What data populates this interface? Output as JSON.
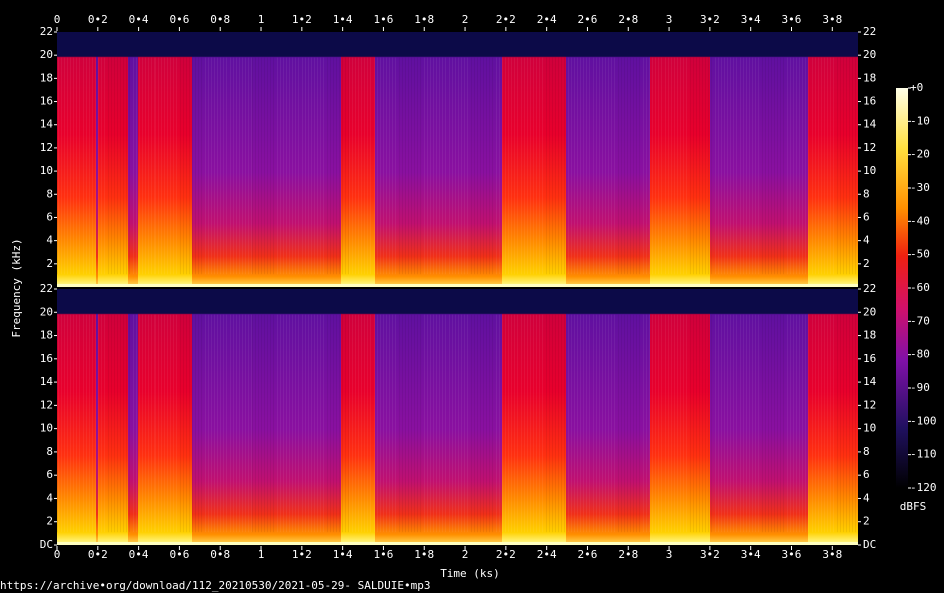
{
  "chart_data": {
    "type": "spectrogram",
    "x_label": "Time (ks)",
    "y_label": "Frequency (kHz)",
    "xlim": [
      0,
      3.926
    ],
    "xticks": [
      0,
      {
        "value": 0.2,
        "label": "0•2"
      },
      {
        "value": 0.4,
        "label": "0•4"
      },
      {
        "value": 0.6,
        "label": "0•6"
      },
      {
        "value": 0.8,
        "label": "0•8"
      },
      1,
      {
        "value": 1.2,
        "label": "1•2"
      },
      {
        "value": 1.4,
        "label": "1•4"
      },
      {
        "value": 1.6,
        "label": "1•6"
      },
      {
        "value": 1.8,
        "label": "1•8"
      },
      2,
      {
        "value": 2.2,
        "label": "2•2"
      },
      {
        "value": 2.4,
        "label": "2•4"
      },
      {
        "value": 2.6,
        "label": "2•6"
      },
      {
        "value": 2.8,
        "label": "2•8"
      },
      3,
      {
        "value": 3.2,
        "label": "3•2"
      },
      {
        "value": 3.4,
        "label": "3•4"
      },
      {
        "value": 3.6,
        "label": "3•6"
      },
      {
        "value": 3.8,
        "label": "3•8"
      }
    ],
    "channels": [
      {
        "ylim": [
          0,
          22
        ],
        "yticks": [
          2,
          4,
          6,
          8,
          10,
          12,
          14,
          16,
          18,
          20,
          22
        ]
      },
      {
        "ylim": [
          0,
          22
        ],
        "yticks": [
          {
            "value": 0,
            "label": "DC"
          },
          2,
          4,
          6,
          8,
          10,
          12,
          14,
          16,
          18,
          20,
          22
        ]
      }
    ],
    "colorbar": {
      "label": "dBFS",
      "lim": [
        -120,
        0
      ],
      "ticks": [
        {
          "value": 0,
          "label": "+0"
        },
        -10,
        -20,
        -30,
        -40,
        -50,
        -60,
        -70,
        -80,
        -90,
        -100,
        -110,
        -120
      ]
    },
    "footer": "https://archive•org/download/112_20210530/2021-05-29- SALDUIE•mp3"
  }
}
